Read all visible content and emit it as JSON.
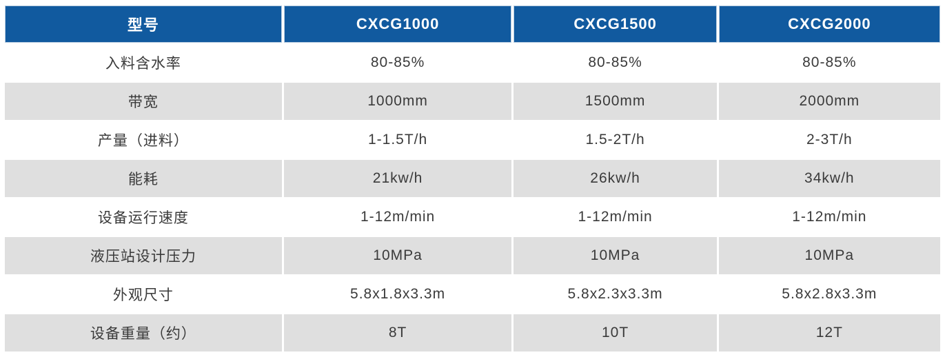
{
  "table": {
    "header": {
      "columns": [
        "型号",
        "CXCG1000",
        "CXCG1500",
        "CXCG2000"
      ]
    },
    "rows": [
      {
        "label": "入料含水率",
        "values": [
          "80-85%",
          "80-85%",
          "80-85%"
        ]
      },
      {
        "label": "带宽",
        "values": [
          "1000mm",
          "1500mm",
          "2000mm"
        ]
      },
      {
        "label": "产量（进料）",
        "values": [
          "1-1.5T/h",
          "1.5-2T/h",
          "2-3T/h"
        ]
      },
      {
        "label": "能耗",
        "values": [
          "21kw/h",
          "26kw/h",
          "34kw/h"
        ]
      },
      {
        "label": "设备运行速度",
        "values": [
          "1-12m/min",
          "1-12m/min",
          "1-12m/min"
        ]
      },
      {
        "label": "液压站设计压力",
        "values": [
          "10MPa",
          "10MPa",
          "10MPa"
        ]
      },
      {
        "label": "外观尺寸",
        "values": [
          "5.8x1.8x3.3m",
          "5.8x2.3x3.3m",
          "5.8x2.8x3.3m"
        ]
      },
      {
        "label": "设备重量（约）",
        "values": [
          "8T",
          "10T",
          "12T"
        ]
      }
    ]
  },
  "colors": {
    "header_bg": "#115A9F",
    "header_text": "#FFFFFF",
    "row_alt_bg": "#DFDFDF",
    "row_bg": "#FFFFFF",
    "body_text": "#3A3A3A"
  },
  "chart_data": {
    "type": "table",
    "title": "",
    "columns": [
      "型号",
      "CXCG1000",
      "CXCG1500",
      "CXCG2000"
    ],
    "rows": [
      [
        "入料含水率",
        "80-85%",
        "80-85%",
        "80-85%"
      ],
      [
        "带宽",
        "1000mm",
        "1500mm",
        "2000mm"
      ],
      [
        "产量（进料）",
        "1-1.5T/h",
        "1.5-2T/h",
        "2-3T/h"
      ],
      [
        "能耗",
        "21kw/h",
        "26kw/h",
        "34kw/h"
      ],
      [
        "设备运行速度",
        "1-12m/min",
        "1-12m/min",
        "1-12m/min"
      ],
      [
        "液压站设计压力",
        "10MPa",
        "10MPa",
        "10MPa"
      ],
      [
        "外观尺寸",
        "5.8x1.8x3.3m",
        "5.8x2.3x3.3m",
        "5.8x2.8x3.3m"
      ],
      [
        "设备重量（约）",
        "8T",
        "10T",
        "12T"
      ]
    ]
  }
}
